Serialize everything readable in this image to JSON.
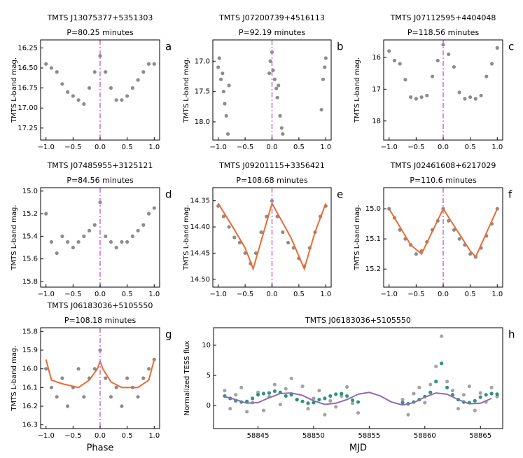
{
  "chart_data": [
    {
      "type": "scatter",
      "title": "TMTS J13075377+5351303",
      "subtitle": "P=80.25 minutes",
      "panel_label": "a",
      "ylabel": "TMTS L-band mag.",
      "xlim": [
        -1.1,
        1.1
      ],
      "xticks": [
        {
          "value": -1,
          "label": "−1.0"
        },
        {
          "value": -0.5,
          "label": "−0.5"
        },
        {
          "value": 0,
          "label": "0.0"
        },
        {
          "value": 0.5,
          "label": "0.5"
        },
        {
          "value": 1,
          "label": "1.0"
        }
      ],
      "ylim": [
        17.4,
        16.15
      ],
      "yticks": [
        16.25,
        {
          "value": 16.5,
          "label": "16.50"
        },
        16.75,
        {
          "value": 17,
          "label": "17.00"
        },
        17.25
      ],
      "vline": 0,
      "vline_color": "#c46cd4",
      "layers": [
        {
          "kind": "points",
          "color": "#808080",
          "x": [
            -1,
            -0.9,
            -0.8,
            -0.7,
            -0.6,
            -0.5,
            -0.4,
            -0.3,
            -0.2,
            -0.1,
            0,
            0.1,
            0.2,
            0.3,
            0.4,
            0.5,
            0.6,
            0.7,
            0.8,
            0.9,
            1
          ],
          "values": [
            16.45,
            16.5,
            16.55,
            16.7,
            16.8,
            16.85,
            16.9,
            16.95,
            16.75,
            16.55,
            16.35,
            16.55,
            16.75,
            16.9,
            16.9,
            16.85,
            16.75,
            16.65,
            16.55,
            16.45,
            16.45
          ]
        }
      ]
    },
    {
      "type": "scatter",
      "title": "TMTS J07200739+4516113",
      "subtitle": "P=92.19 minutes",
      "panel_label": "b",
      "ylabel": "TMTS L-band mag.",
      "xlim": [
        -1.1,
        1.1
      ],
      "xticks": [
        {
          "value": -1,
          "label": "−1.0"
        },
        {
          "value": -0.5,
          "label": "−0.5"
        },
        {
          "value": 0,
          "label": "0.0"
        },
        {
          "value": 0.5,
          "label": "0.5"
        },
        {
          "value": 1,
          "label": "1.0"
        }
      ],
      "ylim": [
        18.3,
        16.65
      ],
      "yticks": [
        {
          "value": 17,
          "label": "17.0"
        },
        17.5,
        {
          "value": 18,
          "label": "18.0"
        }
      ],
      "vline": 0,
      "vline_color": "#c46cd4",
      "layers": [
        {
          "kind": "points",
          "color": "#808080",
          "x": [
            -1,
            -0.98,
            -0.95,
            -0.92,
            -0.9,
            -0.88,
            -0.85,
            -0.82,
            -0.8,
            -0.05,
            -0.03,
            0,
            0.02,
            0.05,
            0.08,
            0.1,
            0.12,
            0.15,
            0.18,
            0.2,
            0.92,
            0.95,
            0.98,
            1
          ],
          "values": [
            17.1,
            16.95,
            17.3,
            17.2,
            17.5,
            17.7,
            17.9,
            18.2,
            17.4,
            17.2,
            17.0,
            16.85,
            17.15,
            17.3,
            17.45,
            17.6,
            17.4,
            17.9,
            18.1,
            18.2,
            17.8,
            17.3,
            17.1,
            16.95
          ]
        }
      ]
    },
    {
      "type": "scatter",
      "title": "TMTS J07112595+4404048",
      "subtitle": "P=118.56 minutes",
      "panel_label": "c",
      "ylabel": "TMTS L-band mag.",
      "xlim": [
        -1.1,
        1.1
      ],
      "xticks": [
        {
          "value": -1,
          "label": "−1.0"
        },
        {
          "value": -0.5,
          "label": "−0.5"
        },
        {
          "value": 0,
          "label": "0.0"
        },
        {
          "value": 0.5,
          "label": "0.5"
        },
        {
          "value": 1,
          "label": "1.0"
        }
      ],
      "ylim": [
        18.6,
        15.45
      ],
      "yticks": [
        16,
        17,
        18
      ],
      "vline": 0,
      "vline_color": "#c46cd4",
      "layers": [
        {
          "kind": "points",
          "color": "#808080",
          "x": [
            -1,
            -0.9,
            -0.8,
            -0.7,
            -0.6,
            -0.5,
            -0.4,
            -0.3,
            -0.2,
            -0.1,
            0,
            0.1,
            0.2,
            0.3,
            0.4,
            0.5,
            0.6,
            0.7,
            0.8,
            0.9,
            1
          ],
          "values": [
            15.8,
            16.1,
            16.2,
            16.7,
            17.25,
            17.3,
            17.25,
            17.2,
            16.6,
            16.1,
            15.6,
            15.9,
            16.3,
            17.1,
            17.3,
            17.25,
            17.3,
            17.2,
            16.6,
            16.2,
            15.7
          ]
        }
      ]
    },
    {
      "type": "scatter",
      "title": "TMTS J07485955+3125121",
      "subtitle": "P=84.56 minutes",
      "panel_label": "d",
      "ylabel": "TMTS L-band mag.",
      "xlim": [
        -1.1,
        1.1
      ],
      "xticks": [
        {
          "value": -1,
          "label": "−1.0"
        },
        {
          "value": -0.5,
          "label": "−0.5"
        },
        {
          "value": 0,
          "label": "0.0"
        },
        {
          "value": 0.5,
          "label": "0.5"
        },
        {
          "value": 1,
          "label": "1.0"
        }
      ],
      "ylim": [
        15.85,
        14.97
      ],
      "yticks": [
        {
          "value": 15,
          "label": "15.0"
        },
        15.2,
        15.4,
        15.6,
        15.8
      ],
      "vline": 0,
      "vline_color": "#c46cd4",
      "layers": [
        {
          "kind": "points",
          "color": "#808080",
          "x": [
            -1,
            -0.9,
            -0.8,
            -0.7,
            -0.6,
            -0.5,
            -0.4,
            -0.3,
            -0.2,
            -0.1,
            0,
            0.1,
            0.2,
            0.3,
            0.4,
            0.5,
            0.6,
            0.7,
            0.8,
            0.9,
            1
          ],
          "values": [
            15.2,
            15.45,
            15.55,
            15.4,
            15.45,
            15.5,
            15.45,
            15.4,
            15.35,
            15.3,
            15.1,
            15.4,
            15.45,
            15.5,
            15.45,
            15.45,
            15.4,
            15.35,
            15.3,
            15.2,
            15.15
          ]
        }
      ]
    },
    {
      "type": "scatter",
      "title": "TMTS J09201115+3356421",
      "subtitle": "P=108.68 minutes",
      "panel_label": "e",
      "ylabel": "TMTS L-band mag.",
      "xlim": [
        -1.1,
        1.1
      ],
      "xticks": [
        {
          "value": -1,
          "label": "−1.0"
        },
        {
          "value": -0.5,
          "label": "−0.5"
        },
        {
          "value": 0,
          "label": "0.0"
        },
        {
          "value": 0.5,
          "label": "0.5"
        },
        {
          "value": 1,
          "label": "1.0"
        }
      ],
      "ylim": [
        14.515,
        14.325
      ],
      "yticks": [
        14.35,
        {
          "value": 14.4,
          "label": "14.40"
        },
        14.45,
        {
          "value": 14.5,
          "label": "14.50"
        }
      ],
      "vline": 0,
      "vline_color": "#c46cd4",
      "layers": [
        {
          "kind": "points",
          "color": "#808080",
          "x": [
            -1,
            -0.9,
            -0.8,
            -0.7,
            -0.6,
            -0.5,
            -0.4,
            -0.3,
            -0.2,
            -0.1,
            0,
            0.1,
            0.2,
            0.3,
            0.4,
            0.5,
            0.6,
            0.7,
            0.8,
            0.9,
            1
          ],
          "values": [
            14.36,
            14.38,
            14.4,
            14.42,
            14.43,
            14.45,
            14.47,
            14.45,
            14.41,
            14.38,
            14.35,
            14.38,
            14.41,
            14.43,
            14.44,
            14.46,
            14.475,
            14.44,
            14.41,
            14.38,
            14.36
          ]
        },
        {
          "kind": "line",
          "color": "#ea6a32",
          "x": [
            -1,
            -0.7,
            -0.5,
            -0.35,
            0,
            0.35,
            0.6,
            0.8,
            1
          ],
          "values": [
            14.355,
            14.405,
            14.44,
            14.48,
            14.355,
            14.42,
            14.48,
            14.41,
            14.355
          ]
        }
      ]
    },
    {
      "type": "scatter",
      "title": "TMTS J02461608+6217029",
      "subtitle": "P=110.6 minutes",
      "panel_label": "f",
      "ylabel": "TMTS L-band mag.",
      "xlim": [
        -1.1,
        1.1
      ],
      "xticks": [
        {
          "value": -1,
          "label": "−1.0"
        },
        {
          "value": -0.5,
          "label": "−0.5"
        },
        {
          "value": 0,
          "label": "0.0"
        },
        {
          "value": 0.5,
          "label": "0.5"
        },
        {
          "value": 1,
          "label": "1.0"
        }
      ],
      "ylim": [
        15.26,
        14.93
      ],
      "yticks": [
        {
          "value": 15,
          "label": "15.0"
        },
        15.1,
        15.2
      ],
      "vline": 0,
      "vline_color": "#c46cd4",
      "layers": [
        {
          "kind": "points",
          "color": "#808080",
          "x": [
            -1,
            -0.9,
            -0.8,
            -0.7,
            -0.6,
            -0.5,
            -0.4,
            -0.3,
            -0.2,
            -0.1,
            0,
            0.1,
            0.2,
            0.3,
            0.4,
            0.5,
            0.6,
            0.7,
            0.8,
            0.9,
            1
          ],
          "values": [
            15.0,
            15.03,
            15.07,
            15.1,
            15.12,
            15.15,
            15.14,
            15.11,
            15.07,
            15.04,
            15.0,
            15.04,
            15.07,
            15.1,
            15.12,
            15.15,
            15.16,
            15.13,
            15.09,
            15.05,
            15.0
          ]
        },
        {
          "kind": "line",
          "color": "#ea6a32",
          "x": [
            -1,
            -0.6,
            -0.4,
            0,
            0.5,
            0.6,
            1
          ],
          "values": [
            15.0,
            15.12,
            15.15,
            15.0,
            15.14,
            15.16,
            15.0
          ]
        }
      ]
    },
    {
      "type": "scatter",
      "title": "TMTS J06183036+5105550",
      "subtitle": "P=108.18 minutes",
      "panel_label": "g",
      "ylabel": "TMTS L-band mag.",
      "xlabel": "Phase",
      "xlim": [
        -1.1,
        1.1
      ],
      "xticks": [
        {
          "value": -1,
          "label": "−1.0"
        },
        {
          "value": -0.5,
          "label": "−0.5"
        },
        {
          "value": 0,
          "label": "0.0"
        },
        {
          "value": 0.5,
          "label": "0.5"
        },
        {
          "value": 1,
          "label": "1.0"
        }
      ],
      "ylim": [
        16.32,
        15.78
      ],
      "yticks": [
        15.8,
        15.9,
        {
          "value": 16,
          "label": "16.0"
        },
        16.1,
        16.2,
        16.3
      ],
      "vline": 0,
      "vline_color": "#c46cd4",
      "layers": [
        {
          "kind": "points",
          "color": "#808080",
          "x": [
            -1,
            -0.9,
            -0.8,
            -0.7,
            -0.6,
            -0.5,
            -0.4,
            -0.3,
            -0.2,
            -0.1,
            0,
            0.1,
            0.2,
            0.3,
            0.4,
            0.5,
            0.6,
            0.7,
            0.8,
            0.9,
            1
          ],
          "values": [
            16.0,
            16.1,
            16.15,
            16.05,
            16.2,
            16.1,
            16.0,
            16.15,
            16.05,
            16.0,
            15.9,
            16.05,
            16.15,
            16.1,
            16.2,
            16.05,
            16.1,
            16.15,
            16.05,
            16.0,
            15.95
          ]
        },
        {
          "kind": "line",
          "color": "#ea6a32",
          "x": [
            -1,
            -0.9,
            -0.7,
            -0.4,
            -0.2,
            -0.05,
            0,
            0.05,
            0.2,
            0.4,
            0.7,
            0.9,
            1
          ],
          "values": [
            15.95,
            16.06,
            16.08,
            16.1,
            16.06,
            16.0,
            15.96,
            16.0,
            16.07,
            16.1,
            16.1,
            16.06,
            15.95
          ]
        }
      ]
    },
    {
      "type": "scatter",
      "title": "TMTS J06183036+5105550",
      "panel_label": "h",
      "ylabel": "Normalized TESS flux",
      "xlabel": "MJD",
      "xlim": [
        58841,
        58867
      ],
      "xticks": [
        58845,
        58850,
        58855,
        58860,
        58865
      ],
      "ylim": [
        -3.8,
        12.9
      ],
      "yticks": [
        0,
        5,
        10
      ],
      "layers": [
        {
          "kind": "points",
          "color": "#9a9a9a",
          "x": [
            58842,
            58842.5,
            58843,
            58843.5,
            58844,
            58844.5,
            58845,
            58845.5,
            58846,
            58846.5,
            58847,
            58847.5,
            58848,
            58848.5,
            58849,
            58849.5,
            58850,
            58850.5,
            58851,
            58851.5,
            58852,
            58852.5,
            58853,
            58853.5,
            58854,
            58858,
            58858.5,
            58859,
            58859.5,
            58860,
            58860.5,
            58861,
            58861.5,
            58862,
            58862.5,
            58863,
            58863.5,
            58864,
            58864.5,
            58865,
            58865.5,
            58866,
            58866.5
          ],
          "values": [
            2.5,
            -0.5,
            1.8,
            3.0,
            -1.0,
            0.5,
            2.2,
            -0.8,
            1.5,
            3.5,
            0.2,
            2.8,
            4.5,
            1.0,
            3.2,
            -0.5,
            1.2,
            2.5,
            -1.5,
            0.8,
            -0.2,
            1.6,
            3.1,
            0.4,
            -1.2,
            1.0,
            -1.5,
            2.0,
            3.0,
            0.5,
            3.5,
            6.5,
            11.5,
            4.0,
            2.5,
            -0.5,
            1.8,
            3.2,
            -0.8,
            2.1,
            0.6,
            3.0,
            1.5
          ]
        },
        {
          "kind": "points",
          "color": "#1b8a6b",
          "x": [
            58842,
            58842.5,
            58843,
            58843.5,
            58844,
            58844.5,
            58845,
            58845.5,
            58846,
            58846.5,
            58847,
            58847.5,
            58848,
            58848.5,
            58849,
            58849.5,
            58850,
            58850.5,
            58851,
            58851.5,
            58852,
            58852.5,
            58853,
            58853.5,
            58854,
            58858,
            58858.5,
            58859,
            58859.5,
            58860,
            58860.5,
            58861,
            58861.5,
            58862,
            58862.5,
            58863,
            58863.5,
            58864,
            58864.5,
            58865,
            58865.5,
            58866,
            58866.5
          ],
          "values": [
            1.6,
            1.2,
            0.8,
            0.6,
            0.7,
            1.2,
            1.8,
            2.0,
            2.1,
            2.4,
            2.2,
            1.6,
            1.8,
            1.0,
            0.7,
            0.4,
            0.5,
            1.0,
            1.2,
            1.6,
            1.9,
            2.0,
            1.6,
            0.9,
            0.6,
            0.5,
            0.3,
            0.6,
            1.0,
            1.5,
            2.2,
            4.0,
            7.0,
            3.0,
            1.8,
            1.0,
            0.6,
            0.5,
            0.8,
            1.4,
            1.8,
            2.0,
            1.9
          ]
        },
        {
          "kind": "line",
          "color": "#8e6bb3",
          "x": [
            58842,
            58843,
            58844,
            58845,
            58846,
            58847,
            58848,
            58849,
            58850,
            58851,
            58852,
            58853,
            58854,
            58855,
            58856,
            58857,
            58858,
            58859,
            58860,
            58861,
            58862,
            58863,
            58864,
            58865,
            58866
          ],
          "values": [
            1.5,
            1.0,
            0.4,
            0.5,
            1.3,
            2.0,
            2.1,
            1.7,
            0.8,
            0.2,
            0.4,
            1.0,
            1.9,
            2.2,
            1.6,
            0.6,
            0.1,
            0.5,
            1.4,
            2.1,
            1.9,
            1.0,
            0.3,
            0.4,
            1.2
          ]
        }
      ]
    }
  ]
}
